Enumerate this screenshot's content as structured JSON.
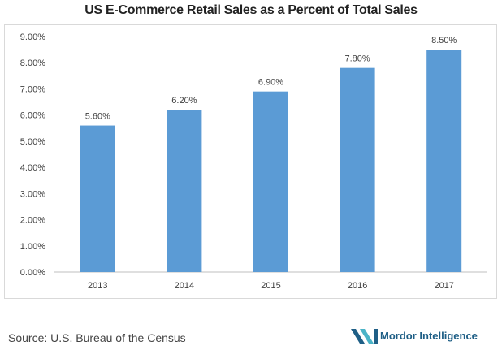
{
  "chart_data": {
    "type": "bar",
    "title": "US E-Commerce Retail Sales as a Percent of Total Sales",
    "categories": [
      "2013",
      "2014",
      "2015",
      "2016",
      "2017"
    ],
    "values": [
      5.6,
      6.2,
      6.9,
      7.8,
      8.5
    ],
    "value_labels": [
      "5.60%",
      "6.20%",
      "6.90%",
      "7.80%",
      "8.50%"
    ],
    "ylim": [
      0,
      9
    ],
    "yticks": [
      "0.00%",
      "1.00%",
      "2.00%",
      "3.00%",
      "4.00%",
      "5.00%",
      "6.00%",
      "7.00%",
      "8.00%",
      "9.00%"
    ],
    "xlabel": "",
    "ylabel": "",
    "grid": false,
    "bar_color": "#5b9bd5"
  },
  "source": "Source: U.S. Bureau of the Census",
  "brand": {
    "name": "Mordor Intelligence",
    "logo_color_dark": "#1f5f86",
    "logo_color_light": "#4ab3c7"
  }
}
